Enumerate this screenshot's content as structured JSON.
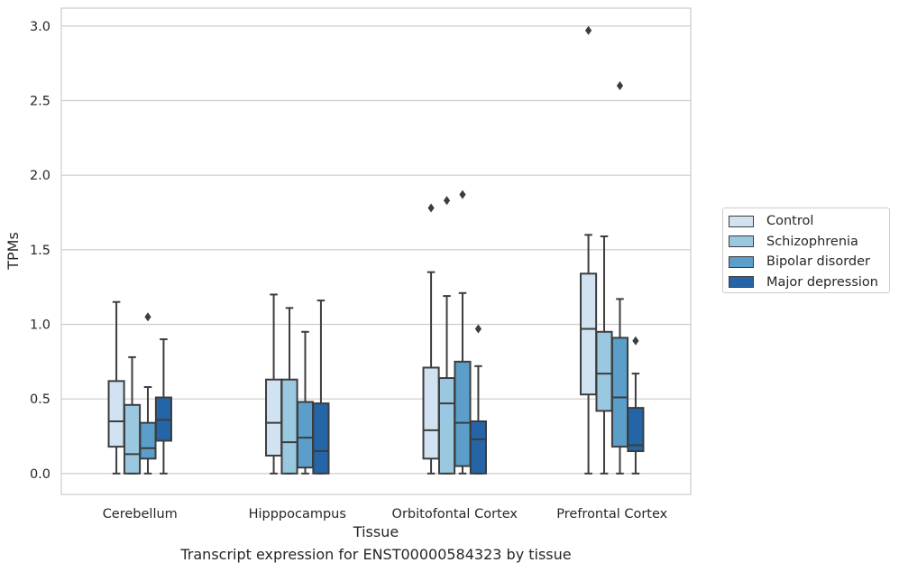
{
  "chart_data": {
    "type": "box",
    "categories": [
      "Cerebellum",
      "Hipppocampus",
      "Orbitofontal Cortex",
      "Prefrontal Cortex"
    ],
    "xlabel": "Tissue",
    "ylabel": "TPMs",
    "ylim": [
      -0.14,
      3.12
    ],
    "yticks": [
      0.0,
      0.5,
      1.0,
      1.5,
      2.0,
      2.5,
      3.0
    ],
    "ytick_labels": [
      "0.0",
      "0.5",
      "1.0",
      "1.5",
      "2.0",
      "2.5",
      "3.0"
    ],
    "grid": "horizontal",
    "legend_position": "right",
    "series": [
      {
        "name": "Control",
        "color": "#d1e2f2",
        "boxes": [
          {
            "whislo": 0.0,
            "q1": 0.18,
            "med": 0.35,
            "q3": 0.62,
            "whishi": 1.15,
            "fliers": []
          },
          {
            "whislo": 0.0,
            "q1": 0.12,
            "med": 0.34,
            "q3": 0.63,
            "whishi": 1.2,
            "fliers": []
          },
          {
            "whislo": 0.0,
            "q1": 0.1,
            "med": 0.29,
            "q3": 0.71,
            "whishi": 1.35,
            "fliers": [
              1.78
            ]
          },
          {
            "whislo": 0.0,
            "q1": 0.53,
            "med": 0.97,
            "q3": 1.34,
            "whishi": 1.6,
            "fliers": [
              2.97
            ]
          }
        ]
      },
      {
        "name": "Schizophrenia",
        "color": "#9ac8e0",
        "boxes": [
          {
            "whislo": 0.0,
            "q1": 0.0,
            "med": 0.13,
            "q3": 0.46,
            "whishi": 0.78,
            "fliers": []
          },
          {
            "whislo": 0.0,
            "q1": 0.0,
            "med": 0.21,
            "q3": 0.63,
            "whishi": 1.11,
            "fliers": []
          },
          {
            "whislo": 0.0,
            "q1": 0.0,
            "med": 0.47,
            "q3": 0.64,
            "whishi": 1.19,
            "fliers": [
              1.83
            ]
          },
          {
            "whislo": 0.0,
            "q1": 0.42,
            "med": 0.67,
            "q3": 0.95,
            "whishi": 1.59,
            "fliers": []
          }
        ]
      },
      {
        "name": "Bipolar disorder",
        "color": "#5a9ec9",
        "boxes": [
          {
            "whislo": 0.0,
            "q1": 0.1,
            "med": 0.17,
            "q3": 0.34,
            "whishi": 0.58,
            "fliers": [
              1.05
            ]
          },
          {
            "whislo": 0.0,
            "q1": 0.04,
            "med": 0.24,
            "q3": 0.48,
            "whishi": 0.95,
            "fliers": []
          },
          {
            "whislo": 0.0,
            "q1": 0.05,
            "med": 0.34,
            "q3": 0.75,
            "whishi": 1.21,
            "fliers": [
              1.87
            ]
          },
          {
            "whislo": 0.0,
            "q1": 0.18,
            "med": 0.51,
            "q3": 0.91,
            "whishi": 1.17,
            "fliers": [
              2.6
            ]
          }
        ]
      },
      {
        "name": "Major depression",
        "color": "#2465a8",
        "boxes": [
          {
            "whislo": 0.0,
            "q1": 0.22,
            "med": 0.36,
            "q3": 0.51,
            "whishi": 0.9,
            "fliers": []
          },
          {
            "whislo": 0.0,
            "q1": 0.0,
            "med": 0.15,
            "q3": 0.47,
            "whishi": 1.16,
            "fliers": []
          },
          {
            "whislo": 0.0,
            "q1": 0.0,
            "med": 0.23,
            "q3": 0.35,
            "whishi": 0.72,
            "fliers": [
              0.97
            ]
          },
          {
            "whislo": 0.0,
            "q1": 0.15,
            "med": 0.19,
            "q3": 0.44,
            "whishi": 0.67,
            "fliers": [
              0.89
            ]
          }
        ]
      }
    ]
  },
  "caption": "Transcript expression for ENST00000584323 by tissue"
}
